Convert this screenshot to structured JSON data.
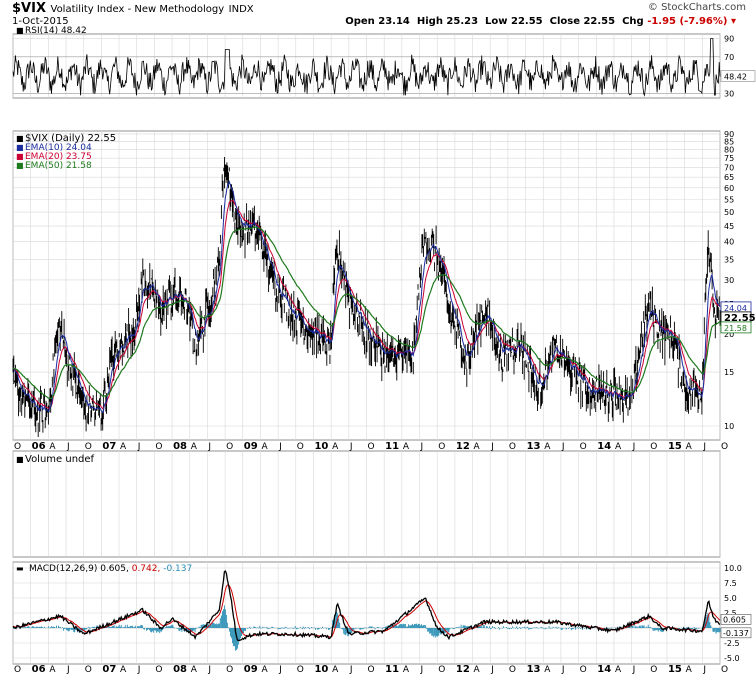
{
  "header": {
    "symbol": "$VIX",
    "name": "Volatility Index - New Methodology",
    "exchange": "INDX",
    "date": "1-Oct-2015",
    "brand": "© StockCharts.com",
    "quote_label_open": "Open",
    "open": "23.14",
    "quote_label_high": "High",
    "high": "25.23",
    "quote_label_low": "Low",
    "low": "22.55",
    "quote_label_close": "Close",
    "close": "22.55",
    "quote_label_chg": "Chg",
    "chg": "-1.95 (-7.96%)"
  },
  "colors": {
    "price": "#000000",
    "ema10": "#1a2c9e",
    "ema20": "#cc0033",
    "ema50": "#1e7a1e",
    "macd_line": "#000000",
    "macd_signal": "#cc0000",
    "macd_hist": "#2a8fb5",
    "grid": "#d8d8d8"
  },
  "chart_data": [
    {
      "type": "line",
      "panel": "rsi",
      "label": "RSI(14) 48.42",
      "series": [
        {
          "name": "RSI(14)",
          "last": 48.42
        }
      ],
      "y_ticks": [
        30,
        70,
        90
      ],
      "ylim": [
        25,
        95
      ],
      "reference_lines": [
        30,
        70
      ],
      "last_value_label": "48.42"
    },
    {
      "type": "line",
      "panel": "price",
      "scale": "log",
      "legend": [
        {
          "text": "$VIX (Daily) 22.55",
          "color": "#000000"
        },
        {
          "text": "EMA(10) 24.04",
          "color": "#1a2c9e"
        },
        {
          "text": "EMA(20) 23.75",
          "color": "#cc0033"
        },
        {
          "text": "EMA(50) 21.58",
          "color": "#1e7a1e"
        }
      ],
      "y_ticks": [
        10,
        15,
        20,
        25,
        30,
        35,
        40,
        45,
        50,
        55,
        60,
        65,
        70,
        75,
        80,
        85,
        90
      ],
      "ylim": [
        9,
        92
      ],
      "last_value_labels": [
        {
          "text": "24.04",
          "value": 24.04,
          "color": "#1a2c9e"
        },
        {
          "text": "22.55",
          "value": 22.55,
          "color": "#000000"
        },
        {
          "text": "21.58",
          "value": 21.58,
          "color": "#1e7a1e"
        }
      ],
      "x": [
        "2005-10",
        "2006-01",
        "2006-04",
        "2006-06",
        "2006-07",
        "2006-10",
        "2007-01",
        "2007-03",
        "2007-07",
        "2007-08",
        "2007-11",
        "2008-01",
        "2008-03",
        "2008-05",
        "2008-07",
        "2008-09",
        "2008-10",
        "2008-11",
        "2008-12",
        "2009-03",
        "2009-06",
        "2009-09",
        "2009-12",
        "2010-04",
        "2010-05",
        "2010-07",
        "2010-10",
        "2011-01",
        "2011-04",
        "2011-06",
        "2011-08",
        "2011-10",
        "2011-12",
        "2012-03",
        "2012-06",
        "2012-09",
        "2012-12",
        "2013-03",
        "2013-06",
        "2013-09",
        "2013-12",
        "2014-04",
        "2014-07",
        "2014-08",
        "2014-10",
        "2014-12",
        "2015-02",
        "2015-04",
        "2015-07",
        "2015-08",
        "2015-09",
        "2015-10"
      ],
      "values": [
        14,
        11.5,
        11,
        22,
        17,
        11.5,
        11,
        17,
        22,
        31,
        24,
        27,
        26,
        18,
        24,
        33,
        75,
        58,
        45,
        45,
        30,
        24,
        21,
        18,
        38,
        26,
        20,
        17,
        17,
        17,
        42,
        36,
        24,
        16,
        24,
        17,
        19,
        13,
        18,
        15,
        13,
        13,
        12,
        16,
        25,
        20,
        20,
        13,
        13,
        40,
        23,
        22.5
      ]
    },
    {
      "type": "bar",
      "panel": "volume",
      "label": "Volume undef"
    },
    {
      "type": "line",
      "panel": "macd",
      "label_prefix": "MACD(12,26,9)",
      "legend": [
        {
          "text": "0.605",
          "color": "#000000"
        },
        {
          "text": "0.742",
          "color": "#cc0000"
        },
        {
          "text": "-0.137",
          "color": "#2a8fb5"
        }
      ],
      "y_ticks": [
        -5.0,
        -2.5,
        0.0,
        2.5,
        5.0,
        7.5,
        10.0
      ],
      "y_tick_labels": [
        "-5.0",
        "-2.5",
        "",
        "2.5",
        "5.0",
        "7.5",
        "10.0"
      ],
      "ylim": [
        -6,
        11
      ],
      "last_value_labels": [
        {
          "text": "0.605",
          "value": 0.605
        },
        {
          "text": "-0.137",
          "value": -0.137
        }
      ],
      "x": [
        "2005-10",
        "2006-06",
        "2006-10",
        "2007-08",
        "2007-11",
        "2008-01",
        "2008-05",
        "2008-09",
        "2008-10",
        "2008-11",
        "2008-12",
        "2009-03",
        "2009-09",
        "2010-04",
        "2010-05",
        "2010-07",
        "2011-01",
        "2011-08",
        "2011-10",
        "2011-12",
        "2012-06",
        "2013-06",
        "2014-04",
        "2014-10",
        "2014-12",
        "2015-07",
        "2015-08",
        "2015-09",
        "2015-10"
      ],
      "values": [
        0,
        2,
        -1,
        3,
        0,
        1.5,
        -1.5,
        3,
        10,
        5,
        -2,
        -1,
        -1,
        -1.5,
        4,
        -1,
        -0.5,
        5,
        0,
        -1.5,
        1,
        1,
        -0.5,
        2,
        0,
        -0.5,
        4.5,
        1.5,
        0.605
      ]
    }
  ],
  "x_axis": {
    "labels": [
      "O",
      "06",
      "A",
      "J",
      "O",
      "07",
      "A",
      "J",
      "O",
      "08",
      "A",
      "J",
      "O",
      "09",
      "A",
      "J",
      "O",
      "10",
      "A",
      "J",
      "O",
      "11",
      "A",
      "J",
      "O",
      "12",
      "A",
      "J",
      "O",
      "13",
      "A",
      "J",
      "O",
      "14",
      "A",
      "J",
      "O",
      "15",
      "A",
      "J",
      "O"
    ],
    "bold_years": [
      "06",
      "07",
      "08",
      "09",
      "10",
      "11",
      "12",
      "13",
      "14",
      "15"
    ]
  }
}
